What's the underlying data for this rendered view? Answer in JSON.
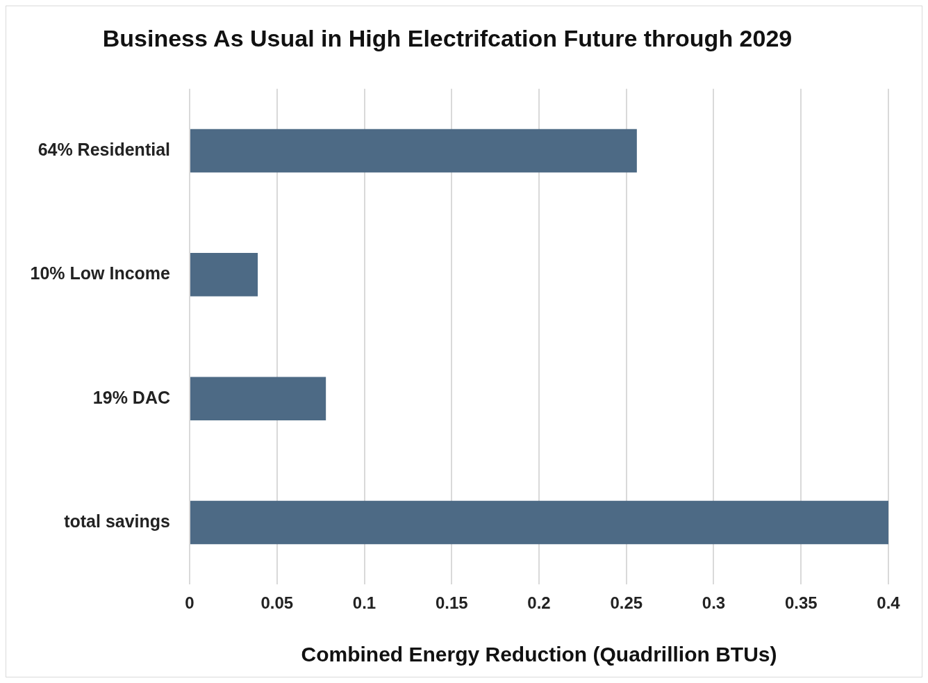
{
  "chart_data": {
    "type": "bar",
    "orientation": "horizontal",
    "title": "Business As Usual in High Electrifcation Future through 2029",
    "xlabel": "Combined Energy Reduction (Quadrillion BTUs)",
    "categories": [
      "64% Residential",
      "10% Low Income",
      "19% DAC",
      "total savings"
    ],
    "values": [
      0.256,
      0.039,
      0.078,
      0.4
    ],
    "color": "#4d6a85",
    "xlim": [
      0,
      0.4
    ],
    "xticks": [
      0,
      0.05,
      0.1,
      0.15,
      0.2,
      0.25,
      0.3,
      0.35,
      0.4
    ],
    "grid": "x",
    "legend": false
  }
}
